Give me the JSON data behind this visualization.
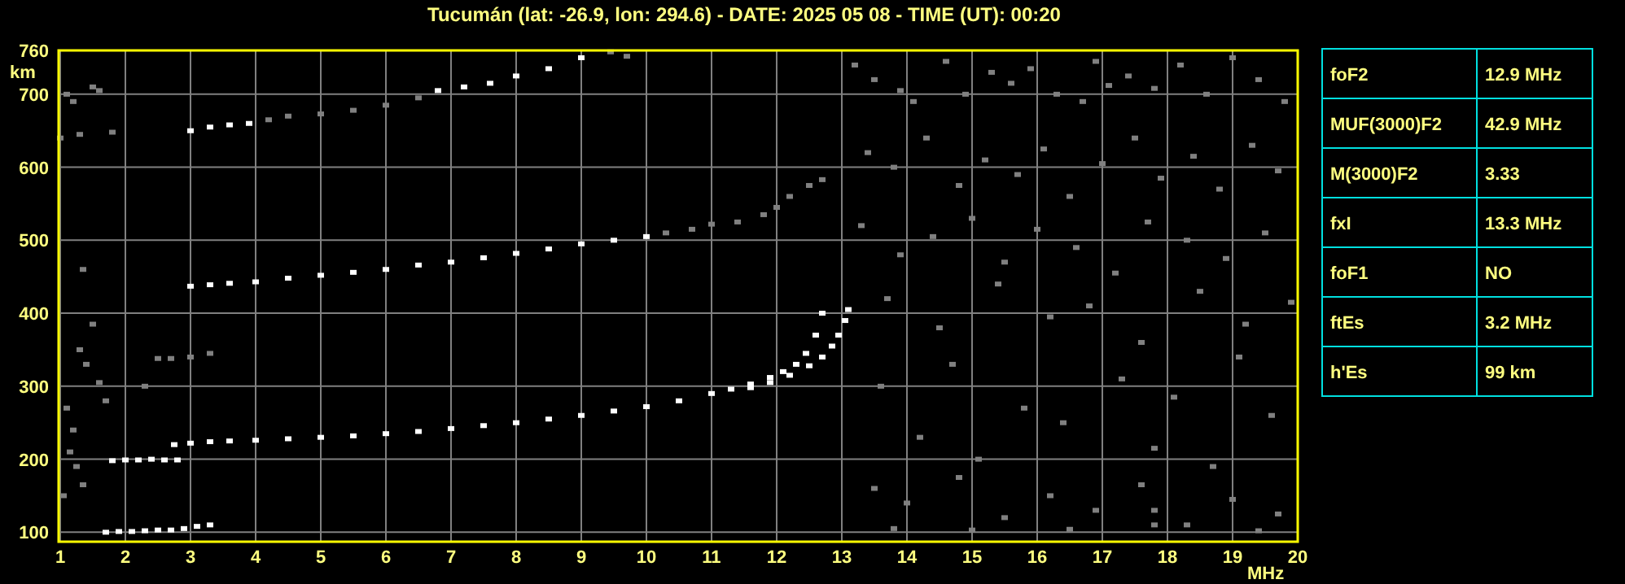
{
  "chart_data": [
    {
      "type": "scatter",
      "title": "Tucumán (lat: -26.9, lon: 294.6) - DATE: 2025 05 08 - TIME (UT): 00:20",
      "xlabel": "MHz",
      "ylabel": "km",
      "xlim": [
        1,
        20
      ],
      "xticks": [
        1,
        2,
        3,
        4,
        5,
        6,
        7,
        8,
        9,
        10,
        11,
        12,
        13,
        14,
        15,
        16,
        17,
        18,
        19,
        20
      ],
      "ylim": [
        87,
        760
      ],
      "yticks": [
        100,
        200,
        300,
        400,
        500,
        600,
        700,
        760
      ],
      "grid": true,
      "marker": "square",
      "series": [
        {
          "color": "#ffffff",
          "x": [
            2.75,
            3,
            3.3,
            3.6,
            4,
            4.5,
            5,
            5.5,
            6,
            6.5,
            7,
            7.5,
            8,
            8.5,
            9,
            9.5,
            10,
            10.5,
            11,
            11.3,
            11.6,
            11.9,
            12.1,
            12.3,
            12.45,
            12.6,
            12.7
          ],
          "values": [
            220,
            222,
            224,
            225,
            226,
            228,
            230,
            232,
            235,
            238,
            242,
            246,
            250,
            255,
            260,
            266,
            272,
            280,
            290,
            296,
            303,
            312,
            320,
            330,
            345,
            370,
            400
          ]
        },
        {
          "color": "#ffffff",
          "x": [
            11.6,
            11.9,
            12.2,
            12.5,
            12.7,
            12.85,
            12.95,
            13.05,
            13.1
          ],
          "values": [
            298,
            305,
            315,
            328,
            340,
            355,
            370,
            390,
            405
          ]
        },
        {
          "color": "#ffffff",
          "x": [
            1.7,
            1.9,
            2.1,
            2.3,
            2.5,
            2.7,
            2.9,
            3.1,
            3.3
          ],
          "values": [
            100,
            101,
            101,
            102,
            103,
            103,
            105,
            108,
            110
          ]
        },
        {
          "color": "#ffffff",
          "x": [
            1.8,
            2,
            2.2,
            2.4,
            2.6,
            2.8
          ],
          "values": [
            198,
            199,
            199,
            200,
            199,
            199
          ]
        },
        {
          "color": "#ffffff",
          "x": [
            3,
            3.3,
            3.6,
            4,
            4.5,
            5,
            5.5,
            6,
            6.5,
            7,
            7.5,
            8,
            8.5,
            9,
            9.5,
            10
          ],
          "values": [
            437,
            439,
            441,
            443,
            448,
            452,
            456,
            460,
            466,
            470,
            476,
            482,
            488,
            495,
            500,
            505
          ]
        },
        {
          "color": "#808080",
          "x": [
            10.3,
            10.7,
            11,
            11.4,
            11.8,
            12,
            12.2,
            12.5,
            12.7
          ],
          "values": [
            510,
            515,
            522,
            525,
            535,
            545,
            560,
            575,
            583
          ]
        },
        {
          "color": "#ffffff",
          "x": [
            3,
            3.3,
            3.6,
            3.9
          ],
          "values": [
            650,
            655,
            658,
            660
          ]
        },
        {
          "color": "#808080",
          "x": [
            4.2,
            4.5,
            5,
            5.5,
            6,
            6.5
          ],
          "values": [
            665,
            670,
            673,
            678,
            685,
            695
          ]
        },
        {
          "color": "#ffffff",
          "x": [
            6.8,
            7.2,
            7.6,
            8,
            8.5,
            9
          ],
          "values": [
            705,
            710,
            715,
            725,
            735,
            750
          ]
        },
        {
          "color": "#808080",
          "x": [
            2.5,
            2.7,
            3,
            3.3,
            1.1,
            1.2,
            1.3,
            1.4,
            1.5,
            1.6,
            1.15,
            1.25,
            1.35,
            1.7,
            1.1,
            1.2,
            1.5,
            1.6,
            1.0,
            1.3,
            1.8,
            1.05,
            1.35,
            2.3,
            9.45,
            9.7
          ],
          "values": [
            338,
            338,
            340,
            345,
            270,
            240,
            350,
            330,
            385,
            305,
            210,
            190,
            165,
            280,
            700,
            690,
            710,
            705,
            640,
            645,
            648,
            150,
            460,
            300,
            758,
            752
          ]
        },
        {
          "color": "#808080",
          "x": [
            13.2,
            13.5,
            13.9,
            14.1,
            14.6,
            14.9,
            15.3,
            15.6,
            15.9,
            16.3,
            16.7,
            16.9,
            17.1,
            17.4,
            17.8,
            18.2,
            18.6,
            19,
            19.4,
            19.8,
            13.4,
            13.8,
            14.3,
            14.8,
            15.2,
            15.7,
            16.1,
            16.5,
            17,
            17.5,
            17.9,
            18.4,
            18.8,
            19.3,
            19.7,
            13.3,
            13.9,
            14.4,
            15,
            15.5,
            16,
            16.6,
            17.2,
            17.7,
            18.3,
            18.9,
            19.5,
            13.7,
            14.5,
            15.4,
            16.2,
            16.8,
            17.6,
            18.5,
            19.2,
            19.9,
            13.6,
            14.7,
            15.8,
            17.3,
            18.1,
            19.1,
            14.2,
            15.1,
            16.4,
            17.8,
            18.7,
            19.6
          ],
          "values": [
            740,
            720,
            705,
            690,
            745,
            700,
            730,
            715,
            735,
            700,
            690,
            745,
            712,
            725,
            708,
            740,
            700,
            750,
            720,
            690,
            620,
            600,
            640,
            575,
            610,
            590,
            625,
            560,
            605,
            640,
            585,
            615,
            570,
            630,
            595,
            520,
            480,
            505,
            530,
            470,
            515,
            490,
            455,
            525,
            500,
            475,
            510,
            420,
            380,
            440,
            395,
            410,
            360,
            430,
            385,
            415,
            300,
            330,
            270,
            310,
            285,
            340,
            230,
            200,
            250,
            215,
            190,
            260
          ]
        },
        {
          "color": "#808080",
          "x": [
            13.5,
            14,
            14.8,
            15.5,
            16.2,
            16.9,
            17.6,
            18.3,
            19,
            19.7,
            13.8,
            15,
            16.5,
            17.8,
            17.8,
            19.4
          ],
          "values": [
            160,
            140,
            175,
            120,
            150,
            130,
            165,
            110,
            145,
            125,
            105,
            103,
            104,
            110,
            130,
            102
          ]
        }
      ]
    },
    {
      "type": "other",
      "annotations": [
        "foF2",
        "12.9 MHz",
        "MUF(3000)F2",
        "42.9 MHz",
        "M(3000)F2",
        "3.33",
        "fxI",
        "13.3 MHz",
        "foF1",
        "NO",
        "ftEs",
        "3.2 MHz",
        "h'Es",
        "99 km"
      ]
    }
  ]
}
